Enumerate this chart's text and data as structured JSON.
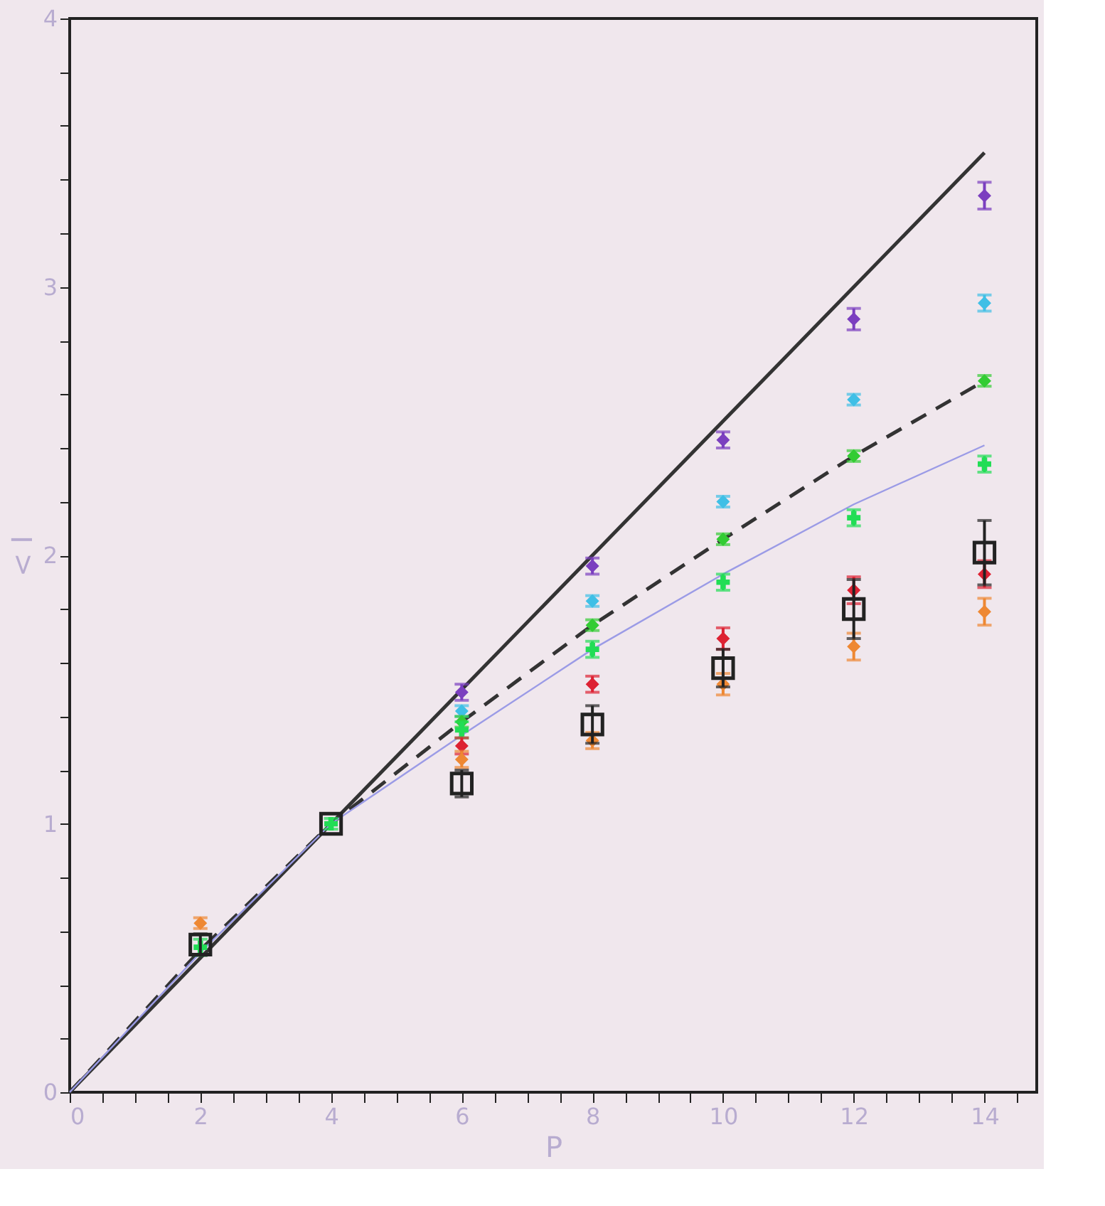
{
  "chart_data": {
    "type": "scatter",
    "xlabel": "P",
    "ylabel": "< I",
    "xlim": [
      0,
      14.8
    ],
    "ylim": [
      0,
      4
    ],
    "xticks": [
      0,
      {
        "value": 0.5,
        "label": null
      },
      {
        "value": 1,
        "label": null
      },
      {
        "value": 1.5,
        "label": null
      },
      2,
      {
        "value": 2.5,
        "label": null
      },
      {
        "value": 3,
        "label": null
      },
      {
        "value": 3.5,
        "label": null
      },
      4,
      {
        "value": 4.5,
        "label": null
      },
      {
        "value": 5,
        "label": null
      },
      {
        "value": 5.5,
        "label": null
      },
      6,
      {
        "value": 6.5,
        "label": null
      },
      {
        "value": 7,
        "label": null
      },
      {
        "value": 7.5,
        "label": null
      },
      8,
      {
        "value": 8.5,
        "label": null
      },
      {
        "value": 9,
        "label": null
      },
      {
        "value": 9.5,
        "label": null
      },
      10,
      {
        "value": 10.5,
        "label": null
      },
      {
        "value": 11,
        "label": null
      },
      {
        "value": 11.5,
        "label": null
      },
      12,
      {
        "value": 12.5,
        "label": null
      },
      {
        "value": 13,
        "label": null
      },
      {
        "value": 13.5,
        "label": null
      },
      14,
      {
        "value": 14.5,
        "label": null
      }
    ],
    "yticks": [
      0,
      {
        "value": 0.2,
        "label": null
      },
      {
        "value": 0.4,
        "label": null
      },
      {
        "value": 0.6,
        "label": null
      },
      {
        "value": 0.8,
        "label": null
      },
      1,
      {
        "value": 1.2,
        "label": null
      },
      {
        "value": 1.4,
        "label": null
      },
      {
        "value": 1.6,
        "label": null
      },
      {
        "value": 1.8,
        "label": null
      },
      2,
      {
        "value": 2.2,
        "label": null
      },
      {
        "value": 2.4,
        "label": null
      },
      {
        "value": 2.6,
        "label": null
      },
      {
        "value": 2.8,
        "label": null
      },
      3,
      {
        "value": 3.2,
        "label": null
      },
      {
        "value": 3.4,
        "label": null
      },
      {
        "value": 3.6,
        "label": null
      },
      {
        "value": 3.8,
        "label": null
      },
      4
    ],
    "grid": false,
    "legend": false,
    "series": [
      {
        "type": "line",
        "color": "#333333",
        "line_style": "solid",
        "x": [
          0,
          14
        ],
        "values": [
          0,
          3.5
        ]
      },
      {
        "type": "line",
        "color": "#333333",
        "line_style": "dashed",
        "x": [
          0,
          2,
          4,
          6,
          8,
          10,
          12,
          14
        ],
        "values": [
          0,
          0.53,
          1,
          1.38,
          1.74,
          2.06,
          2.37,
          2.65
        ]
      },
      {
        "type": "line",
        "color": "#9b9be6",
        "line_style": "solid",
        "x": [
          0,
          2,
          4,
          6,
          8,
          10,
          12,
          14
        ],
        "values": [
          0,
          0.52,
          1,
          1.33,
          1.65,
          1.93,
          2.19,
          2.41
        ]
      },
      {
        "color": "#7b3fbf",
        "marker": "diamond",
        "x": [
          6,
          8,
          10,
          12,
          14
        ],
        "values": [
          1.49,
          1.96,
          2.43,
          2.88,
          3.34
        ],
        "errors": [
          0.03,
          0.03,
          0.03,
          0.04,
          0.05
        ]
      },
      {
        "color": "#3fbfe6",
        "marker": "diamond",
        "x": [
          6,
          8,
          10,
          12,
          14
        ],
        "values": [
          1.42,
          1.83,
          2.2,
          2.58,
          2.94
        ],
        "errors": [
          0.02,
          0.02,
          0.02,
          0.02,
          0.03
        ]
      },
      {
        "color": "#33cc33",
        "marker": "diamond",
        "x": [
          6,
          8,
          10,
          12,
          14
        ],
        "values": [
          1.38,
          1.74,
          2.06,
          2.37,
          2.65
        ],
        "errors": [
          0.02,
          0.02,
          0.02,
          0.02,
          0.02
        ]
      },
      {
        "color": "#22dd55",
        "marker": "cross",
        "x": [
          2,
          4,
          6,
          8,
          10,
          12,
          14
        ],
        "values": [
          0.54,
          1,
          1.35,
          1.65,
          1.9,
          2.14,
          2.34
        ],
        "errors": [
          0.03,
          0.02,
          0.03,
          0.03,
          0.03,
          0.03,
          0.03
        ]
      },
      {
        "color": "#dd2233",
        "marker": "diamond",
        "x": [
          6,
          8,
          10,
          12,
          14
        ],
        "values": [
          1.29,
          1.52,
          1.69,
          1.87,
          1.93
        ],
        "errors": [
          0.03,
          0.03,
          0.04,
          0.05,
          0.05
        ]
      },
      {
        "color": "#ee8833",
        "marker": "diamond",
        "x": [
          2,
          6,
          8,
          10,
          12,
          14
        ],
        "values": [
          0.63,
          1.24,
          1.31,
          1.52,
          1.66,
          1.79
        ],
        "errors": [
          0.02,
          0.03,
          0.03,
          0.04,
          0.05,
          0.05
        ]
      },
      {
        "color": "#222222",
        "marker": "square",
        "x": [
          2,
          4,
          6,
          8,
          10,
          12,
          14
        ],
        "values": [
          0.55,
          1,
          1.15,
          1.37,
          1.58,
          1.8,
          2.01
        ],
        "errors": [
          0.04,
          null,
          0.05,
          0.07,
          0.07,
          0.11,
          0.12
        ]
      }
    ]
  }
}
